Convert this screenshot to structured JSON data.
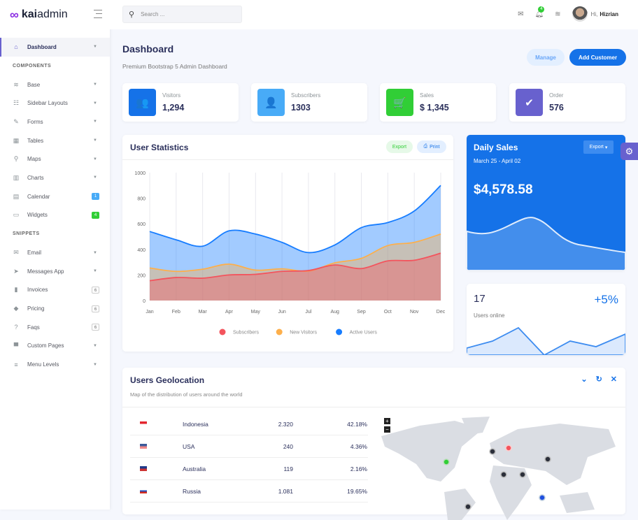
{
  "brand": {
    "prefix": "kai",
    "suffix": "admin"
  },
  "sidebar": {
    "items": [
      {
        "label": "Dashboard",
        "icon": "home-icon",
        "glyph": "⌂",
        "active": true,
        "caret": true
      },
      {
        "section": "COMPONENTS"
      },
      {
        "label": "Base",
        "icon": "layers-icon",
        "glyph": "≋",
        "caret": true
      },
      {
        "label": "Sidebar Layouts",
        "icon": "th-list-icon",
        "glyph": "☷",
        "caret": true
      },
      {
        "label": "Forms",
        "icon": "pen-square-icon",
        "glyph": "✎",
        "caret": true
      },
      {
        "label": "Tables",
        "icon": "table-icon",
        "glyph": "▦",
        "caret": true
      },
      {
        "label": "Maps",
        "icon": "map-marker-icon",
        "glyph": "⚲",
        "caret": true
      },
      {
        "label": "Charts",
        "icon": "chart-bar-icon",
        "glyph": "▥",
        "caret": true
      },
      {
        "label": "Calendar",
        "icon": "calendar-icon",
        "glyph": "▤",
        "badge": "1",
        "badge_color": "#48abf7"
      },
      {
        "label": "Widgets",
        "icon": "desktop-icon",
        "glyph": "▭",
        "badge": "4",
        "badge_color": "#31ce36"
      },
      {
        "section": "SNIPPETS"
      },
      {
        "label": "Email",
        "icon": "envelope-icon",
        "glyph": "✉",
        "caret": true
      },
      {
        "label": "Messages App",
        "icon": "paper-plane-icon",
        "glyph": "➤",
        "caret": true
      },
      {
        "label": "Invoices",
        "icon": "file-invoice-icon",
        "glyph": "▮",
        "badge": "6"
      },
      {
        "label": "Pricing",
        "icon": "tag-icon",
        "glyph": "◆",
        "badge": "6"
      },
      {
        "label": "Faqs",
        "icon": "question-circle-icon",
        "glyph": "?",
        "badge": "6"
      },
      {
        "label": "Custom Pages",
        "icon": "paint-roller-icon",
        "glyph": "▀",
        "caret": true
      },
      {
        "label": "Menu Levels",
        "icon": "bars-icon",
        "glyph": "≡",
        "caret": true
      }
    ]
  },
  "header": {
    "search_placeholder": "Search ...",
    "notifications": "4",
    "greeting": "Hi,",
    "user": "Hizrian"
  },
  "page": {
    "title": "Dashboard",
    "subtitle": "Premium Bootstrap 5 Admin Dashboard",
    "manage": "Manage",
    "add_customer": "Add Customer"
  },
  "stats": [
    {
      "label": "Visitors",
      "value": "1,294",
      "color": "#1572e8",
      "icon": "users-icon",
      "glyph": "👥"
    },
    {
      "label": "Subscribers",
      "value": "1303",
      "color": "#48abf7",
      "icon": "user-check-icon",
      "glyph": "👤"
    },
    {
      "label": "Sales",
      "value": "$ 1,345",
      "color": "#31ce36",
      "icon": "luggage-cart-icon",
      "glyph": "🛒"
    },
    {
      "label": "Order",
      "value": "576",
      "color": "#6861ce",
      "icon": "check-circle-icon",
      "glyph": "✔"
    }
  ],
  "user_stats": {
    "title": "User Statistics",
    "export": "Export",
    "print": "Print"
  },
  "chart_data": {
    "type": "area",
    "categories": [
      "Jan",
      "Feb",
      "Mar",
      "Apr",
      "May",
      "Jun",
      "Jul",
      "Aug",
      "Sep",
      "Oct",
      "Nov",
      "Dec"
    ],
    "ylim": [
      0,
      1000
    ],
    "yticks": [
      0,
      200,
      400,
      600,
      800,
      1000
    ],
    "legend": "bottom",
    "grid": "vertical",
    "series": [
      {
        "name": "Subscribers",
        "color": "#f3545d",
        "values": [
          155,
          180,
          175,
          200,
          205,
          228,
          235,
          278,
          250,
          310,
          315,
          370
        ]
      },
      {
        "name": "New Visitors",
        "color": "#fdaf4b",
        "values": [
          255,
          228,
          245,
          285,
          238,
          248,
          230,
          295,
          330,
          430,
          455,
          520
        ]
      },
      {
        "name": "Active Users",
        "color": "#177dff",
        "values": [
          540,
          475,
          425,
          545,
          520,
          455,
          375,
          435,
          570,
          610,
          700,
          900
        ]
      }
    ]
  },
  "daily_sales": {
    "title": "Daily Sales",
    "period": "March 25 - April 02",
    "amount": "$4,578.58",
    "export": "Export"
  },
  "online": {
    "count": "17",
    "change": "+5%",
    "label": "Users online"
  },
  "geo": {
    "title": "Users Geolocation",
    "subtitle": "Map of the distribution of users around the world",
    "zoom_in": "+",
    "zoom_out": "−",
    "rows": [
      {
        "country": "Indonesia",
        "users": "2.320",
        "percent": "42.18%",
        "flag": [
          "#e3262f",
          "#ffffff"
        ]
      },
      {
        "country": "USA",
        "users": "240",
        "percent": "4.36%",
        "flag": [
          "#3c5a9a",
          "#e88"
        ]
      },
      {
        "country": "Australia",
        "users": "119",
        "percent": "2.16%",
        "flag": [
          "#1f3a8a",
          "#c33"
        ]
      },
      {
        "country": "Russia",
        "users": "1.081",
        "percent": "19.65%",
        "flag": [
          "#ffffff",
          "#1f4fbf",
          "#d52b1e"
        ]
      }
    ]
  }
}
